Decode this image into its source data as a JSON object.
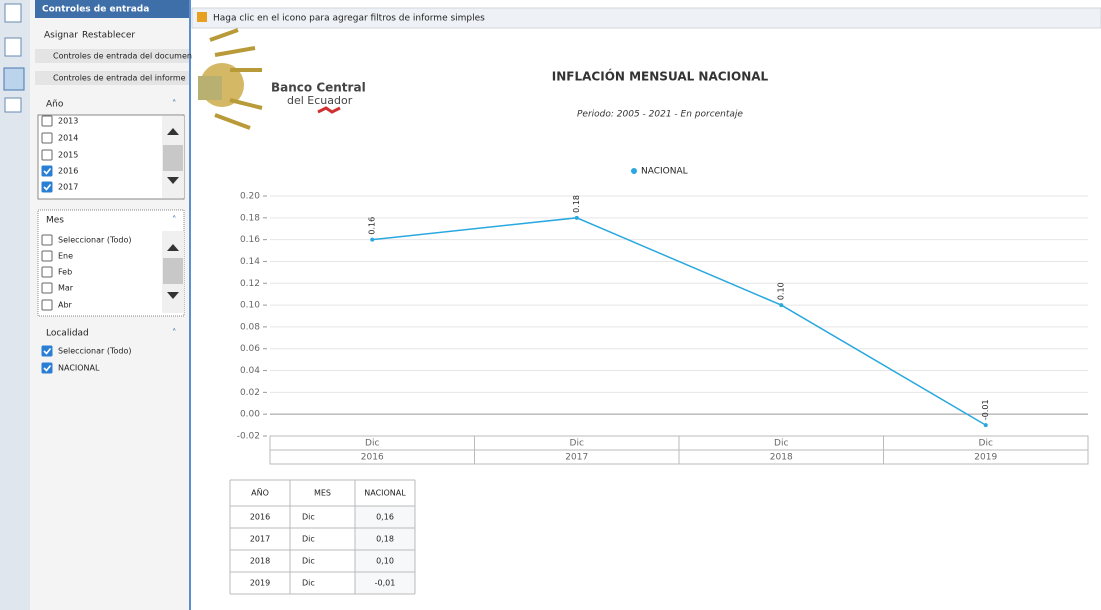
{
  "toolbar": {
    "hint": "Haga clic en el icono para agregar filtros de informe simples"
  },
  "sidebar": {
    "title": "Controles de entrada",
    "actions": [
      "Asignar",
      "Restablecer"
    ],
    "sections": [
      "Controles de entrada del documen",
      "Controles de entrada del informe"
    ],
    "filters": [
      {
        "label": "Año",
        "options": [
          {
            "text": "2013",
            "checked": false
          },
          {
            "text": "2014",
            "checked": false
          },
          {
            "text": "2015",
            "checked": false
          },
          {
            "text": "2016",
            "checked": true
          },
          {
            "text": "2017",
            "checked": true
          }
        ]
      },
      {
        "label": "Mes",
        "options": [
          {
            "text": "Seleccionar (Todo)",
            "checked": false
          },
          {
            "text": "Ene",
            "checked": false
          },
          {
            "text": "Feb",
            "checked": false
          },
          {
            "text": "Mar",
            "checked": false
          },
          {
            "text": "Abr",
            "checked": false
          }
        ]
      },
      {
        "label": "Localidad",
        "options": [
          {
            "text": "Seleccionar (Todo)",
            "checked": true
          },
          {
            "text": "NACIONAL",
            "checked": true
          }
        ]
      }
    ]
  },
  "report": {
    "logo": [
      "Banco Central",
      "del Ecuador"
    ]
  },
  "chart_data": {
    "type": "line",
    "title": "INFLACIÓN MENSUAL NACIONAL",
    "subtitle": "Periodo: 2005 - 2021 - En porcentaje",
    "categories": [
      "Dic",
      "Dic",
      "Dic",
      "Dic"
    ],
    "category_groups": [
      "2016",
      "2017",
      "2018",
      "2019"
    ],
    "series": [
      {
        "name": "NACIONAL",
        "color": "#29a8e0",
        "values": [
          0.16,
          0.18,
          0.1,
          -0.01
        ],
        "value_labels": [
          "0.16",
          "0.18",
          "0.10",
          "-0.01"
        ]
      }
    ],
    "ylim": [
      -0.02,
      0.2
    ],
    "yticks": [
      {
        "value": -0.02,
        "label": "-0.02"
      },
      {
        "value": 0,
        "label": "0.00"
      },
      {
        "value": 0.02,
        "label": "0.02"
      },
      {
        "value": 0.04,
        "label": "0.04"
      },
      {
        "value": 0.06,
        "label": "0.06"
      },
      {
        "value": 0.08,
        "label": "0.08"
      },
      {
        "value": 0.1,
        "label": "0.10"
      },
      {
        "value": 0.12,
        "label": "0.12"
      },
      {
        "value": 0.14,
        "label": "0.14"
      },
      {
        "value": 0.16,
        "label": "0.16"
      },
      {
        "value": 0.18,
        "label": "0.18"
      },
      {
        "value": 0.2,
        "label": "0.20"
      }
    ],
    "grid": true,
    "legend": "top"
  },
  "table": {
    "header": [
      "AÑO",
      "MES",
      "NACIONAL"
    ],
    "rows": [
      [
        "2016",
        "Dic",
        "0,16"
      ],
      [
        "2017",
        "Dic",
        "0,18"
      ],
      [
        "2018",
        "Dic",
        "0,10"
      ],
      [
        "2019",
        "Dic",
        "-0,01"
      ]
    ]
  }
}
